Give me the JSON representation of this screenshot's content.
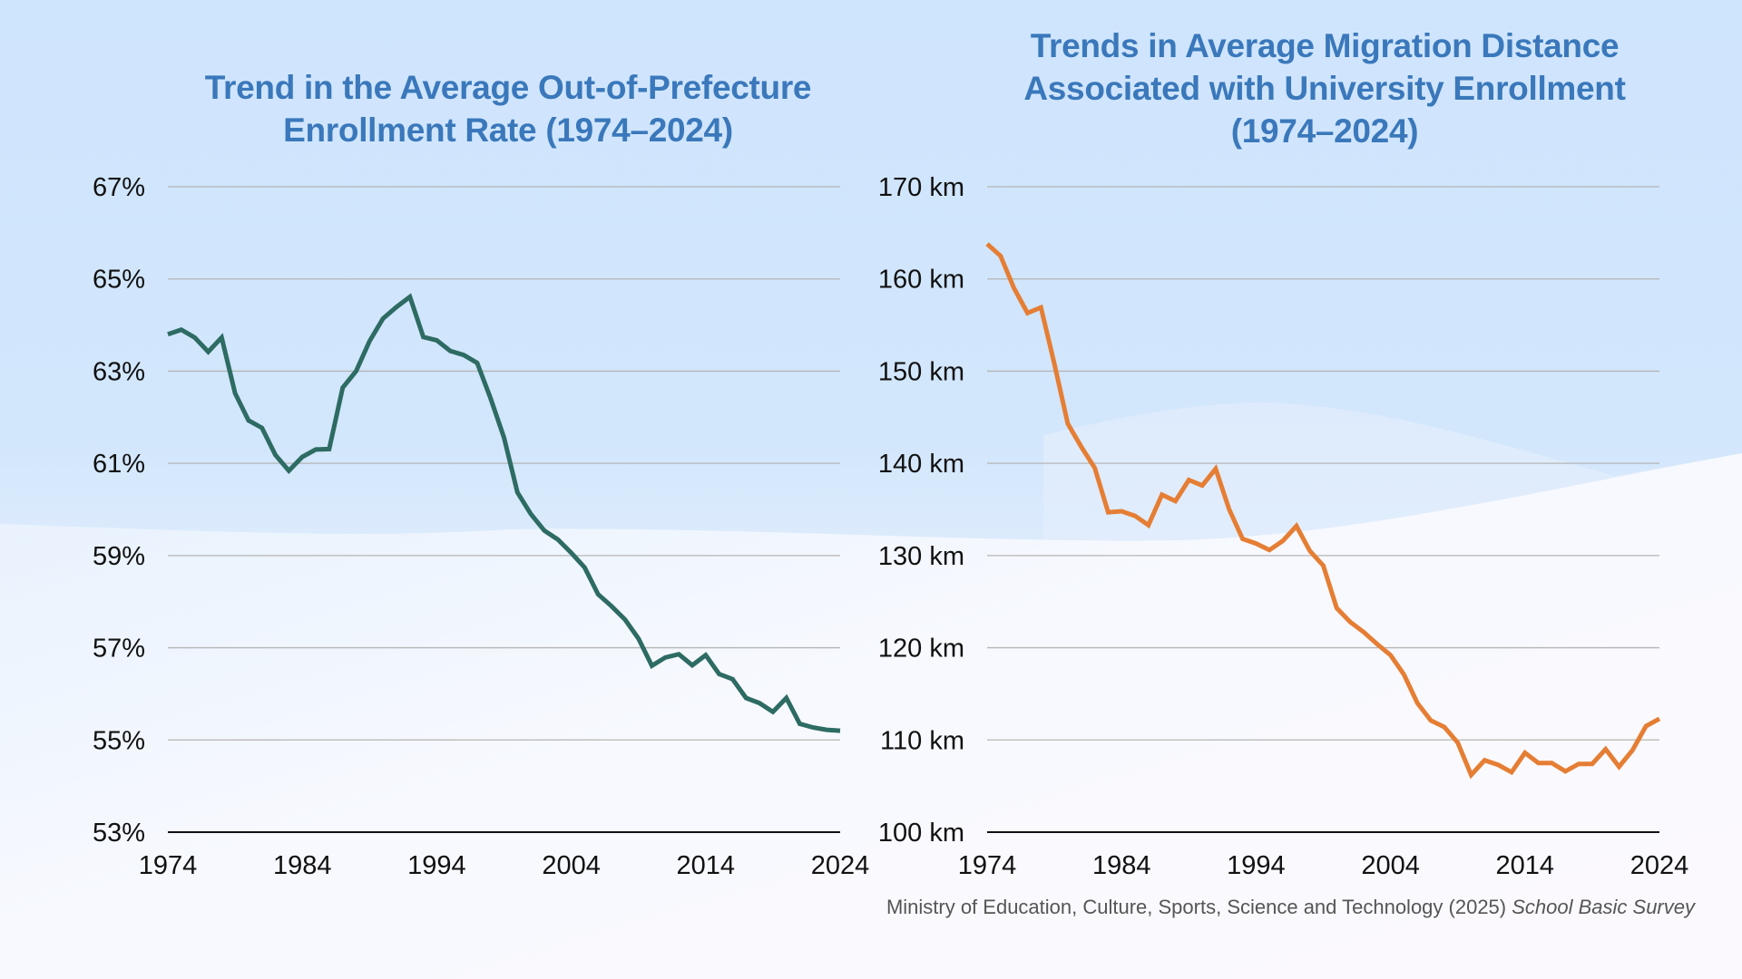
{
  "theme": {
    "title_color": "#3a78bb",
    "left_line_color": "#2d6b63",
    "right_line_color": "#e57e34",
    "grid_color": "#b5b5b5",
    "axis_color": "#111111"
  },
  "source": {
    "text": "Ministry of Education, Culture, Sports, Science and Technology  (2025) ",
    "title": "School Basic Survey"
  },
  "chart_data": [
    {
      "type": "line",
      "title": "Trend in the Average Out-of-Prefecture Enrollment Rate (1974–2024)",
      "title_lines": [
        "Trend in the Average Out-of-Prefecture",
        "Enrollment Rate (1974–2024)"
      ],
      "xlabel": "",
      "ylabel": "",
      "x_range": [
        1974,
        2024
      ],
      "x_ticks": [
        "1974",
        "1984",
        "1994",
        "2004",
        "2014",
        "2024"
      ],
      "ylim": [
        53,
        67
      ],
      "y_ticks": [
        "53%",
        "55%",
        "57%",
        "59%",
        "61%",
        "63%",
        "65%",
        "67%"
      ],
      "y_tick_values": [
        53,
        55,
        57,
        59,
        61,
        63,
        65,
        67
      ],
      "grid": true,
      "legend": "none",
      "series": [
        {
          "name": "Out-of-Prefecture Enrollment Rate (%)",
          "x": [
            1974,
            1975,
            1976,
            1977,
            1978,
            1979,
            1980,
            1981,
            1982,
            1983,
            1984,
            1985,
            1986,
            1987,
            1988,
            1989,
            1990,
            1991,
            1992,
            1993,
            1994,
            1995,
            1996,
            1997,
            1998,
            1999,
            2000,
            2001,
            2002,
            2003,
            2004,
            2005,
            2006,
            2007,
            2008,
            2009,
            2010,
            2011,
            2012,
            2013,
            2014,
            2015,
            2016,
            2017,
            2018,
            2019,
            2020,
            2021,
            2022,
            2023,
            2024
          ],
          "values": [
            63.8,
            63.9,
            63.73,
            63.42,
            63.73,
            62.52,
            61.93,
            61.77,
            61.18,
            60.84,
            61.14,
            61.3,
            61.31,
            62.64,
            63.0,
            63.65,
            64.14,
            64.39,
            64.61,
            63.74,
            63.67,
            63.44,
            63.35,
            63.18,
            62.41,
            61.56,
            60.37,
            59.9,
            59.54,
            59.35,
            59.06,
            58.74,
            58.16,
            57.9,
            57.61,
            57.2,
            56.61,
            56.79,
            56.86,
            56.62,
            56.84,
            56.43,
            56.32,
            55.91,
            55.8,
            55.61,
            55.91,
            55.35,
            55.27,
            55.22,
            55.2
          ]
        }
      ]
    },
    {
      "type": "line",
      "title": "Trends in Average Migration Distance Associated with University Enrollment (1974–2024)",
      "title_lines": [
        "Trends in Average Migration Distance",
        "Associated with University Enrollment",
        "(1974–2024)"
      ],
      "xlabel": "",
      "ylabel": "",
      "x_range": [
        1974,
        2024
      ],
      "x_ticks": [
        "1974",
        "1984",
        "1994",
        "2004",
        "2014",
        "2024"
      ],
      "ylim": [
        100,
        170
      ],
      "y_ticks": [
        "100 km",
        "110 km",
        "120 km",
        "130 km",
        "140 km",
        "150 km",
        "160 km",
        "170 km"
      ],
      "y_tick_values": [
        100,
        110,
        120,
        130,
        140,
        150,
        160,
        170
      ],
      "grid": true,
      "legend": "none",
      "series": [
        {
          "name": "Average Migration Distance (km)",
          "x": [
            1974,
            1975,
            1976,
            1977,
            1978,
            1979,
            1980,
            1981,
            1982,
            1983,
            1984,
            1985,
            1986,
            1987,
            1988,
            1989,
            1990,
            1991,
            1992,
            1993,
            1994,
            1995,
            1996,
            1997,
            1998,
            1999,
            2000,
            2001,
            2002,
            2003,
            2004,
            2005,
            2006,
            2007,
            2008,
            2009,
            2010,
            2011,
            2012,
            2013,
            2014,
            2015,
            2016,
            2017,
            2018,
            2019,
            2020,
            2021,
            2022,
            2023,
            2024
          ],
          "values": [
            163.8,
            162.5,
            159.0,
            156.3,
            156.9,
            150.8,
            144.3,
            141.8,
            139.5,
            134.7,
            134.8,
            134.3,
            133.3,
            136.6,
            135.9,
            138.2,
            137.6,
            139.4,
            135.0,
            131.8,
            131.3,
            130.6,
            131.6,
            133.2,
            130.5,
            128.9,
            124.3,
            122.8,
            121.7,
            120.4,
            119.2,
            117.1,
            114.0,
            112.1,
            111.4,
            109.7,
            106.2,
            107.8,
            107.3,
            106.5,
            108.6,
            107.5,
            107.5,
            106.6,
            107.4,
            107.4,
            109.0,
            107.1,
            108.9,
            111.5,
            112.3
          ]
        }
      ]
    }
  ]
}
